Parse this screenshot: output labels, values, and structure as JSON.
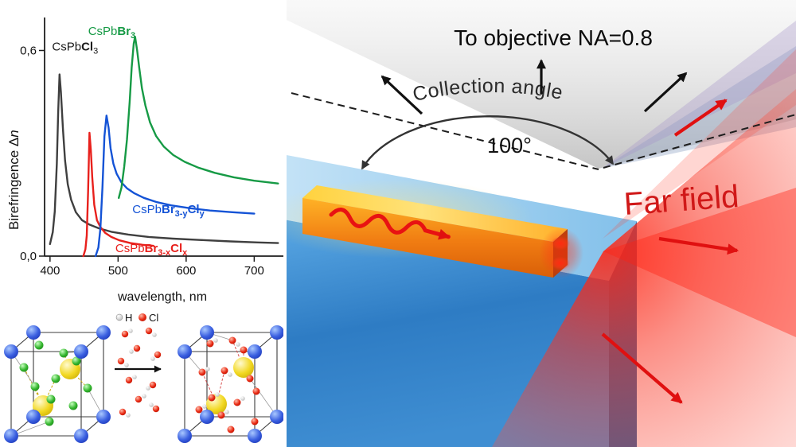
{
  "figure": {
    "background": "#ffffff"
  },
  "chart_data": {
    "type": "line",
    "title": "",
    "xlabel": "wavelength, nm",
    "ylabel": "Birefringence Δn",
    "ylabel_parts": [
      {
        "t": "Birefringence Δ"
      },
      {
        "t": "n",
        "i": 1
      }
    ],
    "xlim": [
      392,
      737
    ],
    "ylim": [
      0,
      0.68
    ],
    "xticks": [
      400,
      500,
      600,
      700
    ],
    "yticks": [
      {
        "v": 0.0,
        "label": "0,0"
      },
      {
        "v": 0.6,
        "label": "0,6"
      }
    ],
    "grid": false,
    "legend_position": "inline-labels",
    "decimal_style": "comma",
    "series": [
      {
        "name": "CsPbCl3",
        "color": "#3f3f3f",
        "label_color": "#1a1a1a",
        "label_parts": [
          {
            "t": "CsPb"
          },
          {
            "t": "Cl",
            "b": 1
          },
          {
            "t": "3",
            "s": 1
          }
        ],
        "label_at": [
          403,
          0.6
        ],
        "points": [
          [
            400,
            0.035
          ],
          [
            404,
            0.07
          ],
          [
            407,
            0.13
          ],
          [
            410,
            0.27
          ],
          [
            412,
            0.42
          ],
          [
            414,
            0.53
          ],
          [
            416,
            0.48
          ],
          [
            419,
            0.37
          ],
          [
            422,
            0.28
          ],
          [
            426,
            0.21
          ],
          [
            431,
            0.165
          ],
          [
            438,
            0.128
          ],
          [
            447,
            0.105
          ],
          [
            458,
            0.092
          ],
          [
            472,
            0.081
          ],
          [
            490,
            0.071
          ],
          [
            515,
            0.063
          ],
          [
            545,
            0.056
          ],
          [
            580,
            0.051
          ],
          [
            620,
            0.047
          ],
          [
            665,
            0.043
          ],
          [
            705,
            0.04
          ],
          [
            735,
            0.038
          ]
        ]
      },
      {
        "name": "CsPbBr3-xClx",
        "color": "#e8201c",
        "label_parts": [
          {
            "t": "CsPb"
          },
          {
            "t": "Br",
            "b": 1
          },
          {
            "t": "3-x",
            "s": 1,
            "b": 1
          },
          {
            "t": "Cl",
            "b": 1
          },
          {
            "t": "x",
            "s": 1,
            "b": 1
          }
        ],
        "label_at": [
          496,
          0.012
        ],
        "points": [
          [
            449,
            0.0
          ],
          [
            452,
            0.02
          ],
          [
            454,
            0.06
          ],
          [
            456,
            0.19
          ],
          [
            458,
            0.36
          ],
          [
            460,
            0.31
          ],
          [
            462,
            0.23
          ],
          [
            465,
            0.15
          ],
          [
            469,
            0.105
          ],
          [
            474,
            0.085
          ],
          [
            481,
            0.068
          ],
          [
            490,
            0.056
          ],
          [
            502,
            0.046
          ],
          [
            518,
            0.038
          ],
          [
            536,
            0.033
          ],
          [
            552,
            0.03
          ]
        ]
      },
      {
        "name": "CsPbBr3-yCly",
        "color": "#1453d6",
        "label_parts": [
          {
            "t": "CsPb"
          },
          {
            "t": "Br",
            "b": 1
          },
          {
            "t": "3-y",
            "s": 1,
            "b": 1
          },
          {
            "t": "Cl",
            "b": 1
          },
          {
            "t": "y",
            "s": 1,
            "b": 1
          }
        ],
        "label_at": [
          521,
          0.125
        ],
        "points": [
          [
            467,
            0.0
          ],
          [
            471,
            0.025
          ],
          [
            474,
            0.08
          ],
          [
            477,
            0.2
          ],
          [
            480,
            0.35
          ],
          [
            483,
            0.41
          ],
          [
            486,
            0.375
          ],
          [
            489,
            0.315
          ],
          [
            493,
            0.27
          ],
          [
            498,
            0.24
          ],
          [
            505,
            0.215
          ],
          [
            513,
            0.198
          ],
          [
            524,
            0.183
          ],
          [
            538,
            0.17
          ],
          [
            556,
            0.158
          ],
          [
            578,
            0.148
          ],
          [
            605,
            0.14
          ],
          [
            635,
            0.133
          ],
          [
            668,
            0.128
          ],
          [
            700,
            0.124
          ]
        ]
      },
      {
        "name": "CsPbBr3",
        "color": "#169a45",
        "label_parts": [
          {
            "t": "CsPb"
          },
          {
            "t": "Br",
            "b": 1
          },
          {
            "t": "3",
            "s": 1,
            "b": 1
          }
        ],
        "label_at": [
          456,
          0.645
        ],
        "points": [
          [
            501,
            0.17
          ],
          [
            505,
            0.2
          ],
          [
            509,
            0.26
          ],
          [
            513,
            0.34
          ],
          [
            517,
            0.45
          ],
          [
            520,
            0.55
          ],
          [
            523,
            0.62
          ],
          [
            525,
            0.64
          ],
          [
            528,
            0.6
          ],
          [
            531,
            0.55
          ],
          [
            535,
            0.49
          ],
          [
            540,
            0.44
          ],
          [
            547,
            0.39
          ],
          [
            556,
            0.35
          ],
          [
            567,
            0.32
          ],
          [
            581,
            0.295
          ],
          [
            598,
            0.275
          ],
          [
            618,
            0.258
          ],
          [
            642,
            0.243
          ],
          [
            670,
            0.23
          ],
          [
            700,
            0.22
          ],
          [
            735,
            0.212
          ]
        ]
      }
    ]
  },
  "molecule_legend": {
    "h": "H",
    "cl": "Cl"
  },
  "right_panel": {
    "objective_label": "To objective NA=0.8",
    "collection_angle_label": "Collection angle",
    "angle_value": "100°",
    "far_field_label": "Far field",
    "far_field_color": "#d01818"
  }
}
